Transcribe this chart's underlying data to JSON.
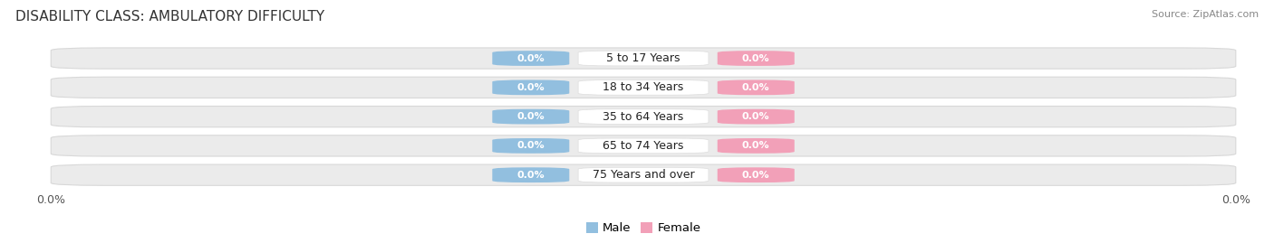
{
  "title": "DISABILITY CLASS: AMBULATORY DIFFICULTY",
  "source": "Source: ZipAtlas.com",
  "categories": [
    "5 to 17 Years",
    "18 to 34 Years",
    "35 to 64 Years",
    "65 to 74 Years",
    "75 Years and over"
  ],
  "male_values": [
    0.0,
    0.0,
    0.0,
    0.0,
    0.0
  ],
  "female_values": [
    0.0,
    0.0,
    0.0,
    0.0,
    0.0
  ],
  "male_color": "#92bfdf",
  "female_color": "#f2a0b8",
  "bar_bg_color": "#ebebeb",
  "bar_bg_edge_color": "#d8d8d8",
  "category_bg_color": "#ffffff",
  "category_text_color": "#222222",
  "title_color": "#333333",
  "source_color": "#888888",
  "tick_label_color": "#555555",
  "background_color": "#ffffff",
  "title_fontsize": 11,
  "source_fontsize": 8,
  "tick_fontsize": 9,
  "cat_fontsize": 9,
  "label_fontsize": 8
}
